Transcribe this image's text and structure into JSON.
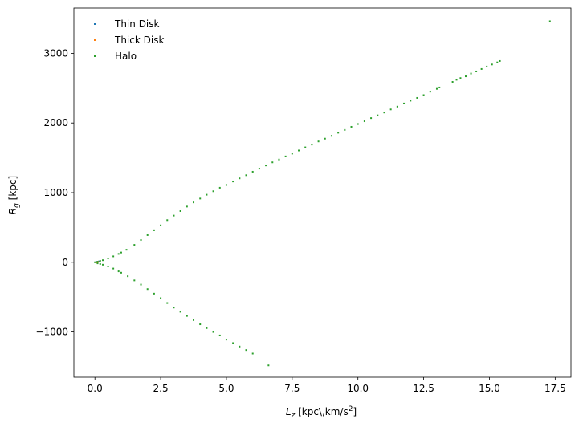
{
  "chart_data": {
    "type": "scatter",
    "title": "",
    "xlabel_main": "L",
    "xlabel_sub": "z",
    "xlabel_units": " [kpc\\,km/s",
    "xlabel_units_sup": "2",
    "xlabel_units_close": "]",
    "ylabel_main": "R",
    "ylabel_sub": "g",
    "ylabel_units": " [kpc]",
    "xlim": [
      -0.8,
      18.1
    ],
    "ylim": [
      -1650,
      3650
    ],
    "xticks": [
      0.0,
      2.5,
      5.0,
      7.5,
      10.0,
      12.5,
      15.0,
      17.5
    ],
    "xtick_labels": [
      "0.0",
      "2.5",
      "5.0",
      "7.5",
      "10.0",
      "12.5",
      "15.0",
      "17.5"
    ],
    "yticks": [
      -1000,
      0,
      1000,
      2000,
      3000
    ],
    "ytick_labels": [
      "−1000",
      "0",
      "1000",
      "2000",
      "3000"
    ],
    "grid": false,
    "legend_position": "upper-left",
    "series": [
      {
        "name": "Thin Disk",
        "color": "#1f77b4",
        "points": [
          [
            0.05,
            5
          ],
          [
            0.1,
            -8
          ],
          [
            0.15,
            12
          ]
        ]
      },
      {
        "name": "Thick Disk",
        "color": "#ff7f0e",
        "points": [
          [
            0.08,
            -3
          ],
          [
            0.12,
            6
          ]
        ]
      },
      {
        "name": "Halo",
        "color": "#2ca02c",
        "points": [
          [
            0.0,
            0
          ],
          [
            0.1,
            8
          ],
          [
            0.2,
            20
          ],
          [
            0.3,
            30
          ],
          [
            0.5,
            55
          ],
          [
            0.7,
            85
          ],
          [
            0.9,
            120
          ],
          [
            1.0,
            140
          ],
          [
            1.2,
            180
          ],
          [
            1.5,
            250
          ],
          [
            1.75,
            320
          ],
          [
            2.0,
            390
          ],
          [
            2.25,
            460
          ],
          [
            2.5,
            530
          ],
          [
            2.75,
            605
          ],
          [
            3.0,
            670
          ],
          [
            3.25,
            735
          ],
          [
            3.5,
            800
          ],
          [
            3.75,
            860
          ],
          [
            4.0,
            915
          ],
          [
            4.25,
            970
          ],
          [
            4.5,
            1020
          ],
          [
            4.75,
            1070
          ],
          [
            5.0,
            1110
          ],
          [
            5.25,
            1160
          ],
          [
            5.5,
            1205
          ],
          [
            5.75,
            1250
          ],
          [
            6.0,
            1300
          ],
          [
            6.25,
            1345
          ],
          [
            6.5,
            1390
          ],
          [
            6.75,
            1435
          ],
          [
            7.0,
            1475
          ],
          [
            7.25,
            1520
          ],
          [
            7.5,
            1560
          ],
          [
            7.75,
            1605
          ],
          [
            8.0,
            1650
          ],
          [
            8.25,
            1690
          ],
          [
            8.5,
            1735
          ],
          [
            8.75,
            1775
          ],
          [
            9.0,
            1815
          ],
          [
            9.25,
            1860
          ],
          [
            9.5,
            1900
          ],
          [
            9.75,
            1945
          ],
          [
            10.0,
            1985
          ],
          [
            10.25,
            2025
          ],
          [
            10.5,
            2070
          ],
          [
            10.75,
            2110
          ],
          [
            11.0,
            2150
          ],
          [
            11.25,
            2195
          ],
          [
            11.5,
            2235
          ],
          [
            11.75,
            2280
          ],
          [
            12.0,
            2320
          ],
          [
            12.25,
            2360
          ],
          [
            12.5,
            2400
          ],
          [
            12.75,
            2450
          ],
          [
            13.0,
            2490
          ],
          [
            13.1,
            2510
          ],
          [
            13.6,
            2590
          ],
          [
            13.75,
            2620
          ],
          [
            13.9,
            2645
          ],
          [
            14.1,
            2670
          ],
          [
            14.3,
            2710
          ],
          [
            14.5,
            2740
          ],
          [
            14.7,
            2775
          ],
          [
            14.9,
            2810
          ],
          [
            15.1,
            2840
          ],
          [
            15.3,
            2870
          ],
          [
            15.4,
            2890
          ],
          [
            17.3,
            3460
          ],
          [
            0.1,
            -15
          ],
          [
            0.2,
            -25
          ],
          [
            0.3,
            -35
          ],
          [
            0.5,
            -60
          ],
          [
            0.7,
            -90
          ],
          [
            0.9,
            -130
          ],
          [
            1.0,
            -150
          ],
          [
            1.25,
            -200
          ],
          [
            1.5,
            -260
          ],
          [
            1.75,
            -320
          ],
          [
            2.0,
            -385
          ],
          [
            2.25,
            -450
          ],
          [
            2.5,
            -515
          ],
          [
            2.75,
            -585
          ],
          [
            3.0,
            -650
          ],
          [
            3.25,
            -710
          ],
          [
            3.5,
            -770
          ],
          [
            3.75,
            -830
          ],
          [
            4.0,
            -890
          ],
          [
            4.25,
            -945
          ],
          [
            4.5,
            -1000
          ],
          [
            4.75,
            -1050
          ],
          [
            5.0,
            -1110
          ],
          [
            5.25,
            -1160
          ],
          [
            5.5,
            -1210
          ],
          [
            5.75,
            -1260
          ],
          [
            6.0,
            -1310
          ],
          [
            6.6,
            -1480
          ]
        ]
      }
    ]
  }
}
